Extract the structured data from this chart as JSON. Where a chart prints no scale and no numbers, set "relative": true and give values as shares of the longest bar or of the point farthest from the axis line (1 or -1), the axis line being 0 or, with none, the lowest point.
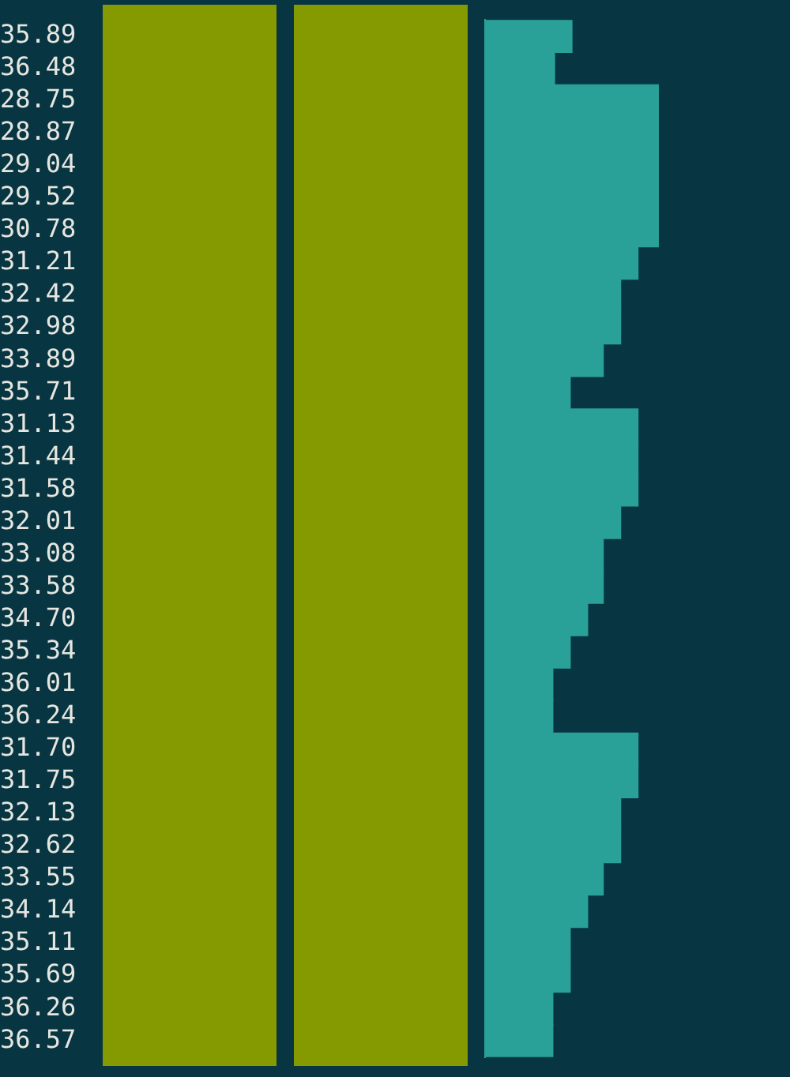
{
  "chart_data": {
    "type": "bar",
    "orientation": "horizontal",
    "relative": true,
    "grid": false,
    "legend": false,
    "categories": [
      "35.89",
      "36.48",
      "28.75",
      "28.87",
      "29.04",
      "29.52",
      "30.78",
      "31.21",
      "32.42",
      "32.98",
      "33.89",
      "35.71",
      "31.13",
      "31.44",
      "31.58",
      "32.01",
      "33.08",
      "33.58",
      "34.70",
      "35.34",
      "36.01",
      "36.24",
      "31.70",
      "31.75",
      "32.13",
      "32.62",
      "33.55",
      "34.14",
      "35.11",
      "35.69",
      "36.26",
      "36.57"
    ],
    "series": [
      {
        "color": "#2aa198",
        "values": [
          0.5,
          0.4,
          1,
          1,
          1,
          1,
          1,
          0.88,
          0.78,
          0.78,
          0.68,
          0.49,
          0.88,
          0.88,
          0.88,
          0.78,
          0.68,
          0.68,
          0.59,
          0.49,
          0.39,
          0.39,
          0.88,
          0.88,
          0.78,
          0.78,
          0.68,
          0.59,
          0.49,
          0.49,
          0.39,
          0.39
        ]
      }
    ]
  }
}
